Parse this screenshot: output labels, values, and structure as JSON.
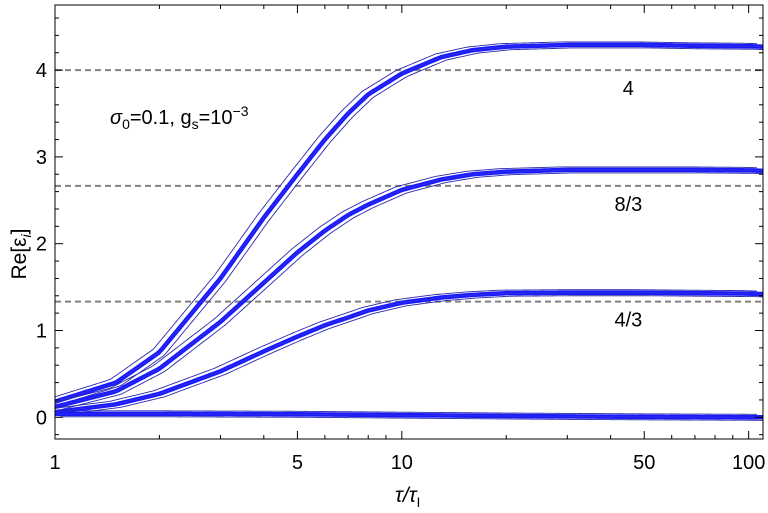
{
  "chart_data": {
    "type": "line",
    "title": "",
    "xlabel": "τ/τ",
    "xlabel_sub": "I",
    "ylabel": "Re[ε",
    "ylabel_sub": "i",
    "ylabel_close": "]",
    "x_scale": "log",
    "xlim": [
      1,
      110
    ],
    "ylim": [
      -0.25,
      4.75
    ],
    "x_ticks": [
      1,
      5,
      10,
      50,
      100
    ],
    "x_tick_labels": [
      "1",
      "5",
      "10",
      "50",
      "100"
    ],
    "y_ticks": [
      0,
      1,
      2,
      3,
      4
    ],
    "y_tick_labels": [
      "0",
      "1",
      "2",
      "3",
      "4"
    ],
    "grid": false,
    "legend": "none",
    "params_annotation": {
      "sigma_symbol": "σ",
      "sigma_sub": "0",
      "sigma_value": "=0.1, g",
      "g_sub": "s",
      "g_value": "=10",
      "g_exp": "−3"
    },
    "reference_lines": [
      {
        "y": 4,
        "label": "4",
        "style": "dashed",
        "color": "#808080"
      },
      {
        "y": 2.6667,
        "label": "8/3",
        "style": "dashed",
        "color": "#808080"
      },
      {
        "y": 1.3333,
        "label": "4/3",
        "style": "dashed",
        "color": "#808080"
      }
    ],
    "series": [
      {
        "color": "#1a1aff",
        "x": [
          1,
          1.5,
          2,
          3,
          4,
          5,
          6,
          7,
          8,
          10,
          13,
          16,
          20,
          30,
          50,
          70,
          100,
          110
        ],
        "y": [
          0.18,
          0.4,
          0.75,
          1.6,
          2.3,
          2.8,
          3.2,
          3.5,
          3.72,
          3.96,
          4.15,
          4.23,
          4.27,
          4.29,
          4.29,
          4.28,
          4.275,
          4.27
        ]
      },
      {
        "color": "#1a1aff",
        "x": [
          1,
          1.5,
          2,
          3,
          4,
          5,
          6,
          7,
          8,
          10,
          13,
          16,
          20,
          30,
          50,
          70,
          100,
          110
        ],
        "y": [
          0.12,
          0.3,
          0.56,
          1.1,
          1.55,
          1.9,
          2.15,
          2.33,
          2.45,
          2.62,
          2.74,
          2.8,
          2.83,
          2.85,
          2.85,
          2.85,
          2.845,
          2.84
        ]
      },
      {
        "color": "#1a1aff",
        "x": [
          1,
          1.5,
          2,
          3,
          4,
          5,
          6,
          7,
          8,
          10,
          13,
          16,
          20,
          30,
          50,
          70,
          100,
          110
        ],
        "y": [
          0.06,
          0.15,
          0.27,
          0.53,
          0.76,
          0.93,
          1.06,
          1.15,
          1.23,
          1.32,
          1.38,
          1.41,
          1.43,
          1.435,
          1.435,
          1.43,
          1.425,
          1.42
        ]
      },
      {
        "color": "#1a1aff",
        "x": [
          1,
          2,
          5,
          10,
          20,
          50,
          110
        ],
        "y": [
          0.04,
          0.04,
          0.035,
          0.025,
          0.015,
          0.005,
          0.0
        ]
      }
    ]
  }
}
